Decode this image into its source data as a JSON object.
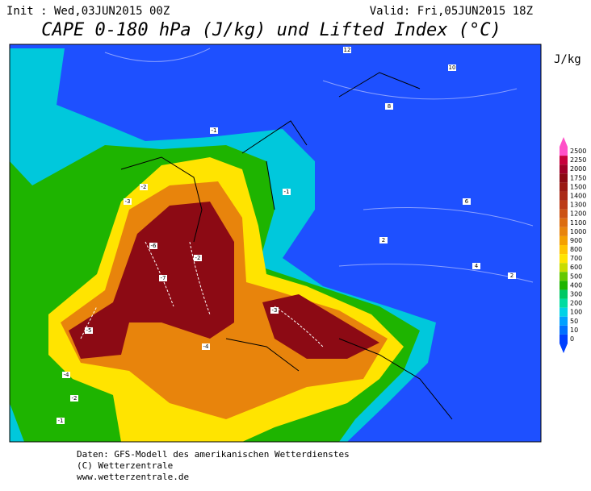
{
  "header": {
    "init": "Init : Wed,03JUN2015 00Z",
    "valid": "Valid: Fri,05JUN2015 18Z",
    "title": "CAPE 0-180 hPa (J/kg) und Lifted Index (°C)"
  },
  "colorbar": {
    "unit": "J/kg",
    "levels": [
      2500,
      2250,
      2000,
      1750,
      1500,
      1400,
      1300,
      1200,
      1100,
      1000,
      900,
      800,
      700,
      600,
      500,
      400,
      300,
      200,
      100,
      50,
      10,
      0
    ],
    "colors": [
      "#ff50c8",
      "#c8003c",
      "#a00028",
      "#8c0a14",
      "#9a1a14",
      "#aa2a18",
      "#bc3c18",
      "#cc5214",
      "#dc6c10",
      "#e8840c",
      "#f4a000",
      "#ffc400",
      "#ffe400",
      "#c8dc00",
      "#64c800",
      "#1eb400",
      "#00c864",
      "#00dca0",
      "#00d2e6",
      "#00a0ff",
      "#0070ff",
      "#0040ff"
    ]
  },
  "map": {
    "contour_labels": [
      12,
      10,
      8,
      6,
      4,
      2,
      -1,
      -2,
      -3,
      -4,
      -5,
      -6,
      -7,
      -2,
      -1,
      -3,
      -4,
      -2,
      -1,
      2
    ]
  },
  "footer": {
    "line1": "Daten: GFS-Modell des amerikanischen Wetterdienstes",
    "line2": "(C) Wetterzentrale",
    "line3": "www.wetterzentrale.de"
  }
}
